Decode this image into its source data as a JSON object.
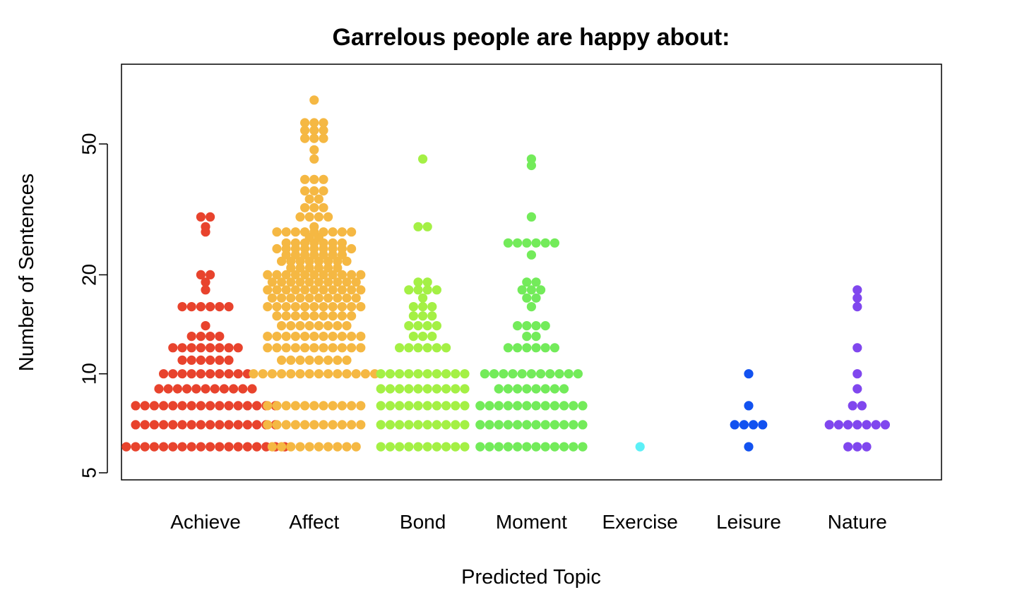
{
  "chart_data": {
    "type": "scatter",
    "subtype": "beeswarm",
    "title": "Garrelous people are happy about:",
    "xlabel": "Predicted Topic",
    "ylabel": "Number of Sentences",
    "y_scale": "log",
    "ylim": [
      5,
      75
    ],
    "y_ticks": [
      {
        "value": 5,
        "label": "5"
      },
      {
        "value": 10,
        "label": "10"
      },
      {
        "value": 20,
        "label": "20"
      },
      {
        "value": 50,
        "label": "50"
      }
    ],
    "grid": false,
    "legend": "none",
    "categories": [
      "Achieve",
      "Affect",
      "Bond",
      "Moment",
      "Exercise",
      "Leisure",
      "Nature"
    ],
    "series": [
      {
        "category": "Achieve",
        "color": "#E8432D",
        "levels": [
          [
            6,
            18
          ],
          [
            7,
            16
          ],
          [
            8,
            16
          ],
          [
            9,
            11
          ],
          [
            10,
            10
          ],
          [
            11,
            6
          ],
          [
            12,
            8
          ],
          [
            13,
            4
          ],
          [
            14,
            1
          ],
          [
            16,
            6
          ],
          [
            18,
            1
          ],
          [
            19,
            1
          ],
          [
            20,
            2
          ],
          [
            27,
            1
          ],
          [
            28,
            1
          ],
          [
            30,
            2
          ]
        ]
      },
      {
        "category": "Affect",
        "color": "#F5B843",
        "levels": [
          [
            6,
            10
          ],
          [
            7,
            11
          ],
          [
            8,
            11
          ],
          [
            10,
            14
          ],
          [
            11,
            8
          ],
          [
            12,
            11
          ],
          [
            13,
            11
          ],
          [
            14,
            8
          ],
          [
            15,
            9
          ],
          [
            16,
            11
          ],
          [
            17,
            10
          ],
          [
            18,
            11
          ],
          [
            19,
            10
          ],
          [
            20,
            11
          ],
          [
            21,
            6
          ],
          [
            22,
            8
          ],
          [
            23,
            7
          ],
          [
            24,
            9
          ],
          [
            25,
            7
          ],
          [
            26,
            2
          ],
          [
            27,
            9
          ],
          [
            28,
            1
          ],
          [
            30,
            4
          ],
          [
            32,
            3
          ],
          [
            34,
            2
          ],
          [
            36,
            3
          ],
          [
            39,
            3
          ],
          [
            45,
            1
          ],
          [
            48,
            1
          ],
          [
            52,
            3
          ],
          [
            55,
            3
          ],
          [
            58,
            3
          ],
          [
            68,
            1
          ]
        ]
      },
      {
        "category": "Bond",
        "color": "#A4F045",
        "levels": [
          [
            6,
            10
          ],
          [
            7,
            10
          ],
          [
            8,
            10
          ],
          [
            9,
            10
          ],
          [
            10,
            10
          ],
          [
            12,
            6
          ],
          [
            13,
            3
          ],
          [
            14,
            4
          ],
          [
            15,
            3
          ],
          [
            16,
            3
          ],
          [
            17,
            1
          ],
          [
            18,
            4
          ],
          [
            19,
            2
          ],
          [
            28,
            2
          ],
          [
            45,
            1
          ]
        ]
      },
      {
        "category": "Moment",
        "color": "#73EB5A",
        "levels": [
          [
            6,
            12
          ],
          [
            7,
            12
          ],
          [
            8,
            12
          ],
          [
            9,
            8
          ],
          [
            10,
            11
          ],
          [
            12,
            6
          ],
          [
            13,
            2
          ],
          [
            14,
            4
          ],
          [
            16,
            1
          ],
          [
            17,
            2
          ],
          [
            18,
            3
          ],
          [
            19,
            2
          ],
          [
            23,
            1
          ],
          [
            25,
            6
          ],
          [
            30,
            1
          ],
          [
            43,
            1
          ],
          [
            45,
            1
          ]
        ]
      },
      {
        "category": "Exercise",
        "color": "#5CF0F7",
        "levels": [
          [
            6,
            1
          ]
        ]
      },
      {
        "category": "Leisure",
        "color": "#1252F0",
        "levels": [
          [
            6,
            1
          ],
          [
            7,
            4
          ],
          [
            8,
            1
          ],
          [
            10,
            1
          ]
        ]
      },
      {
        "category": "Nature",
        "color": "#8047EE",
        "levels": [
          [
            6,
            3
          ],
          [
            7,
            7
          ],
          [
            8,
            2
          ],
          [
            9,
            1
          ],
          [
            10,
            1
          ],
          [
            12,
            1
          ],
          [
            16,
            1
          ],
          [
            17,
            1
          ],
          [
            18,
            1
          ]
        ]
      }
    ]
  }
}
